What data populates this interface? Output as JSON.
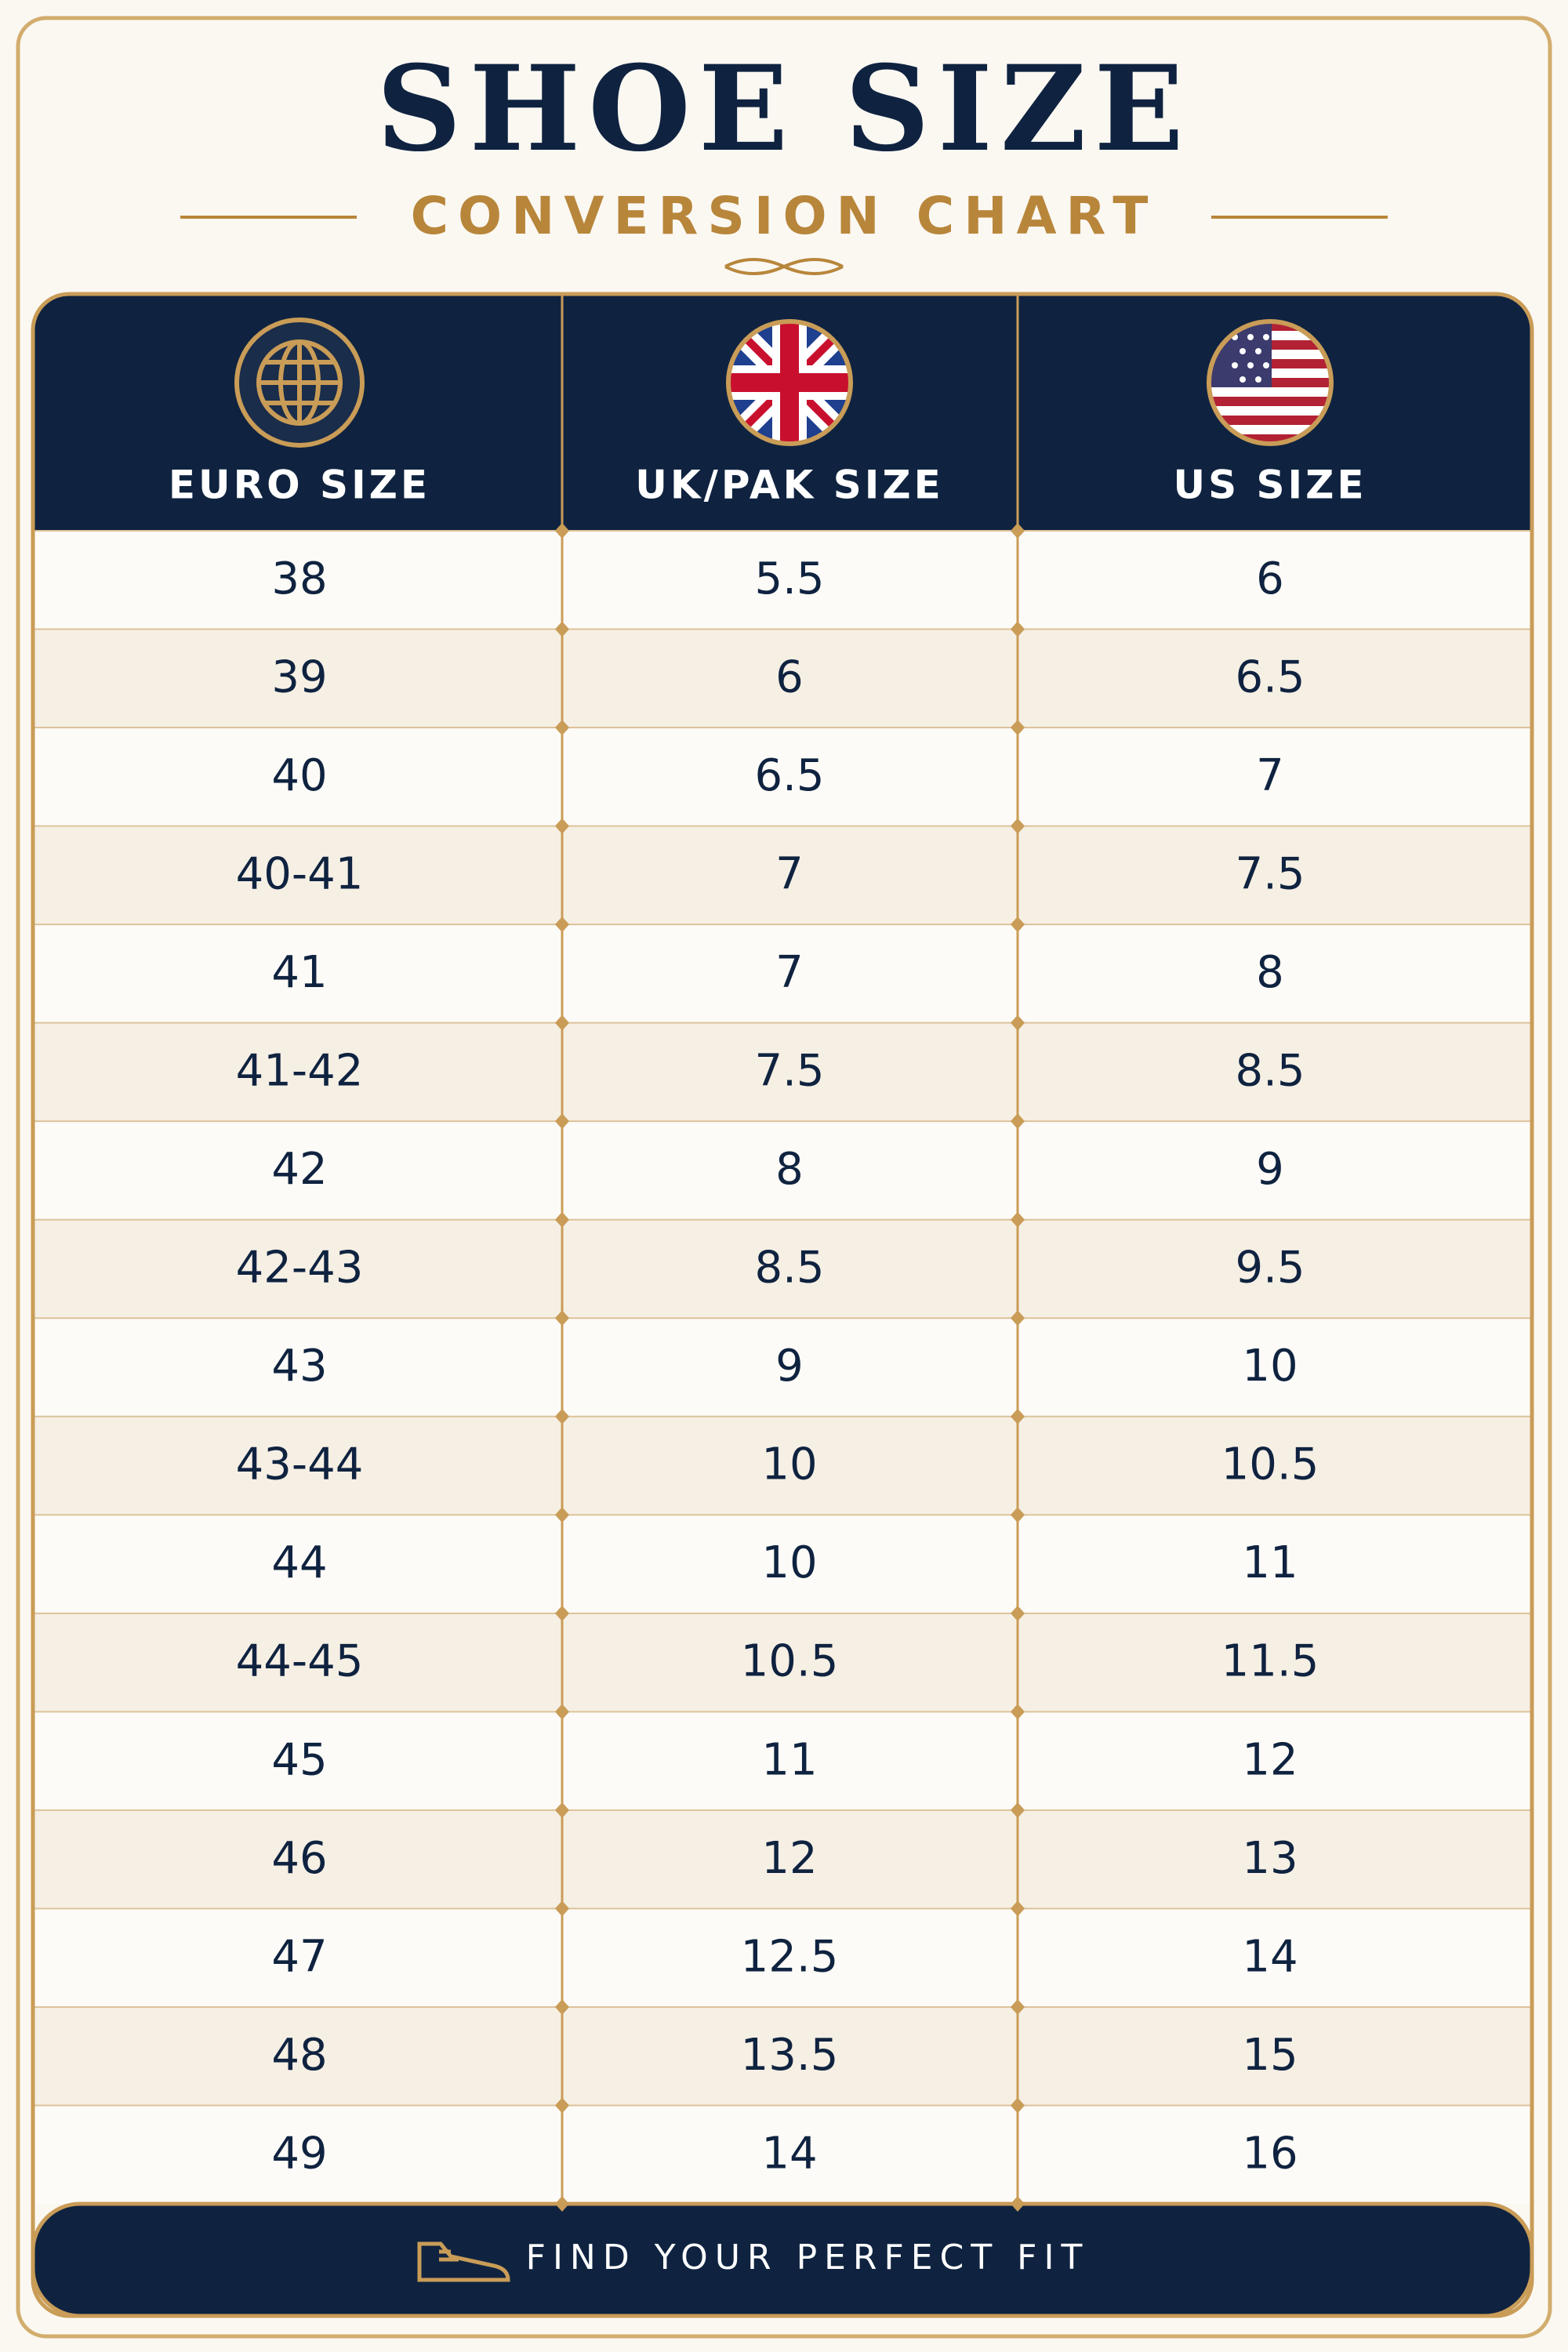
{
  "header": {
    "title": "SHOE SIZE",
    "subtitle": "CONVERSION CHART"
  },
  "table": {
    "columns": [
      "EURO SIZE",
      "UK/PAK SIZE",
      "US SIZE"
    ],
    "rows": [
      [
        "38",
        "5.5",
        "6"
      ],
      [
        "39",
        "6",
        "6.5"
      ],
      [
        "40",
        "6.5",
        "7"
      ],
      [
        "40-41",
        "7",
        "7.5"
      ],
      [
        "41",
        "7",
        "8"
      ],
      [
        "41-42",
        "7.5",
        "8.5"
      ],
      [
        "42",
        "8",
        "9"
      ],
      [
        "42-43",
        "8.5",
        "9.5"
      ],
      [
        "43",
        "9",
        "10"
      ],
      [
        "43-44",
        "10",
        "10.5"
      ],
      [
        "44",
        "10",
        "11"
      ],
      [
        "44-45",
        "10.5",
        "11.5"
      ],
      [
        "45",
        "11",
        "12"
      ],
      [
        "46",
        "12",
        "13"
      ],
      [
        "47",
        "12.5",
        "14"
      ],
      [
        "48",
        "13.5",
        "15"
      ],
      [
        "49",
        "14",
        "16"
      ]
    ]
  },
  "footer": {
    "text": "FIND YOUR PERFECT FIT"
  }
}
